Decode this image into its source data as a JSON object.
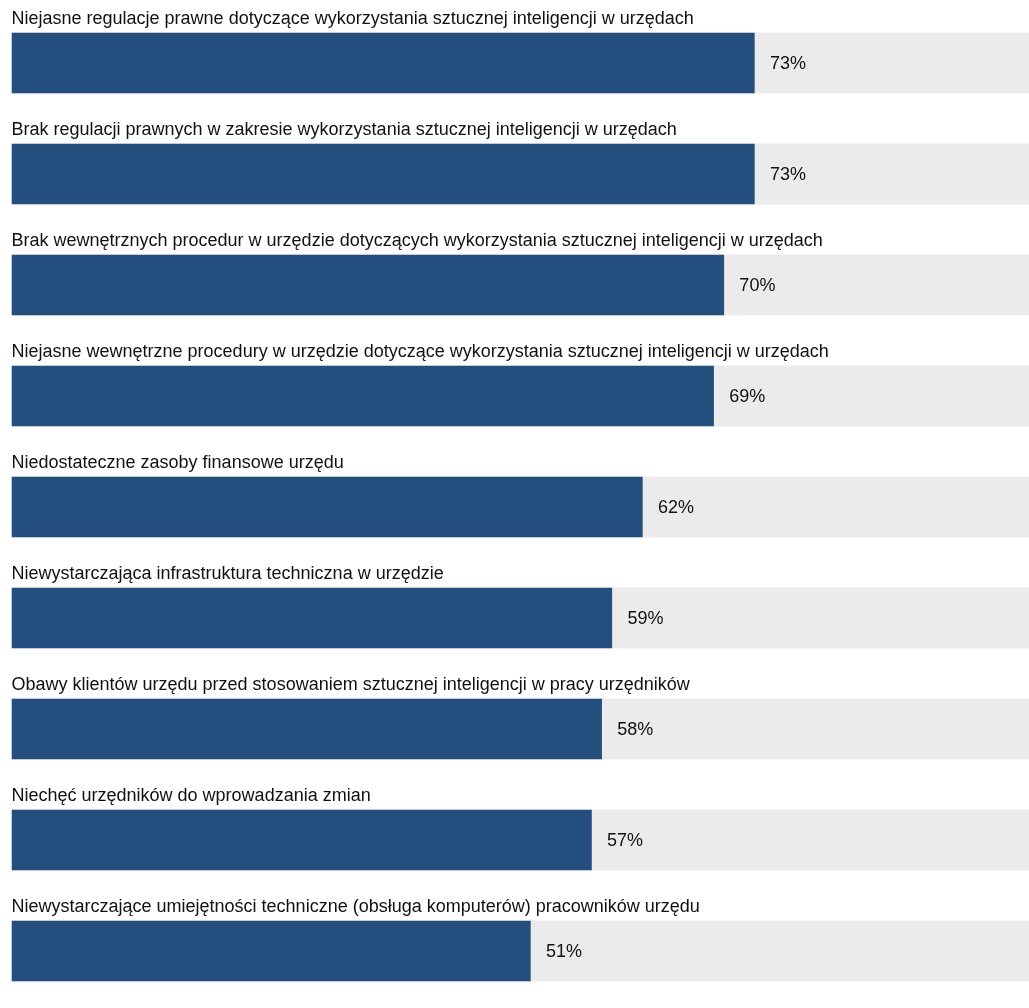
{
  "chart_data": {
    "type": "bar",
    "orientation": "horizontal",
    "categories": [
      "Niejasne regulacje prawne dotyczące wykorzystania sztucznej inteligencji w urzędach",
      "Brak regulacji prawnych w zakresie wykorzystania sztucznej inteligencji w urzędach",
      "Brak wewnętrznych procedur w urzędzie dotyczących wykorzystania sztucznej inteligencji w urzędach",
      "Niejasne wewnętrzne procedury w urzędzie dotyczące wykorzystania sztucznej inteligencji w urzędach",
      "Niedostateczne zasoby finansowe urzędu",
      "Niewystarczająca infrastruktura techniczna w urzędzie",
      "Obawy klientów urzędu przed stosowaniem sztucznej inteligencji w pracy urzędników",
      "Niechęć urzędników do wprowadzania zmian",
      "Niewystarczające umiejętności techniczne (obsługa komputerów) pracowników urzędu"
    ],
    "values": [
      73,
      73,
      70,
      69,
      62,
      59,
      58,
      57,
      51
    ],
    "value_labels": [
      "73%",
      "73%",
      "70%",
      "69%",
      "62%",
      "59%",
      "58%",
      "57%",
      "51%"
    ],
    "color": "#234e7e",
    "xlim": [
      0,
      100
    ],
    "tick_labels": false,
    "grid": false
  }
}
